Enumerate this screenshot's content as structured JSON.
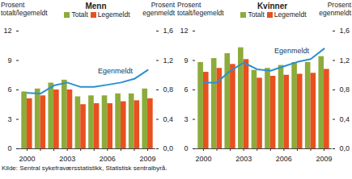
{
  "chart_data": [
    {
      "type": "bar",
      "title": "Menn",
      "categories": [
        2000,
        null,
        null,
        2003,
        null,
        null,
        2006,
        null,
        null,
        2009
      ],
      "ylabel": "Prosent totalt/legemeldt",
      "y2label": "Prosent egenmeldt",
      "ylim": [
        0,
        12
      ],
      "yticks": [
        0,
        3,
        6,
        9,
        12
      ],
      "y2lim": [
        0,
        1.6
      ],
      "y2ticks": [
        {
          "value": 0,
          "label": "0,0"
        },
        {
          "value": 0.4,
          "label": "0,4"
        },
        {
          "value": 0.8,
          "label": "0,8"
        },
        {
          "value": 1.2,
          "label": "1,2"
        },
        {
          "value": 1.6,
          "label": "1,6"
        }
      ],
      "grid": false,
      "legend": "top",
      "series": [
        {
          "name": "Totalt",
          "type": "bar",
          "color": "#8dab3b",
          "values": [
            5.8,
            6.1,
            6.7,
            7.0,
            5.3,
            5.4,
            5.4,
            5.6,
            5.6,
            6.1
          ]
        },
        {
          "name": "Legemeldt",
          "type": "bar",
          "color": "#e8501f",
          "values": [
            5.1,
            5.4,
            6.0,
            6.0,
            4.5,
            4.6,
            4.6,
            4.8,
            4.9,
            5.1
          ]
        },
        {
          "name": "Egenmeldt",
          "type": "line",
          "axis": "y2",
          "color": "#2b8fd4",
          "values": [
            0.76,
            0.75,
            0.86,
            0.9,
            0.84,
            0.84,
            0.87,
            0.9,
            0.95,
            1.07
          ]
        }
      ]
    },
    {
      "type": "bar",
      "title": "Kvinner",
      "categories": [
        2000,
        null,
        null,
        2003,
        null,
        null,
        2006,
        null,
        null,
        2009
      ],
      "ylabel": "Prosent totalt/legemeldt",
      "y2label": "Prosent egenmeldt",
      "ylim": [
        0,
        12
      ],
      "yticks": [
        0,
        3,
        6,
        9,
        12
      ],
      "y2lim": [
        0,
        1.6
      ],
      "y2ticks": [
        {
          "value": 0,
          "label": "0,0"
        },
        {
          "value": 0.4,
          "label": "0,4"
        },
        {
          "value": 0.8,
          "label": "0,8"
        },
        {
          "value": 1.2,
          "label": "1,2"
        },
        {
          "value": 1.6,
          "label": "1,6"
        }
      ],
      "grid": false,
      "legend": "top",
      "series": [
        {
          "name": "Totalt",
          "type": "bar",
          "color": "#8dab3b",
          "values": [
            8.8,
            9.2,
            9.7,
            10.3,
            8.0,
            8.2,
            8.5,
            8.8,
            8.8,
            9.4
          ]
        },
        {
          "name": "Legemeldt",
          "type": "bar",
          "color": "#e8501f",
          "values": [
            7.8,
            8.2,
            8.6,
            9.1,
            7.2,
            7.4,
            7.5,
            7.6,
            7.7,
            8.1
          ]
        },
        {
          "name": "Egenmeldt",
          "type": "line",
          "axis": "y2",
          "color": "#2b8fd4",
          "values": [
            0.9,
            0.9,
            1.06,
            1.17,
            1.08,
            1.06,
            1.12,
            1.18,
            1.22,
            1.36
          ]
        }
      ]
    }
  ],
  "source": "Kilde: Sentral sykefraværsstatistikk, Statistisk sentralbyrå."
}
